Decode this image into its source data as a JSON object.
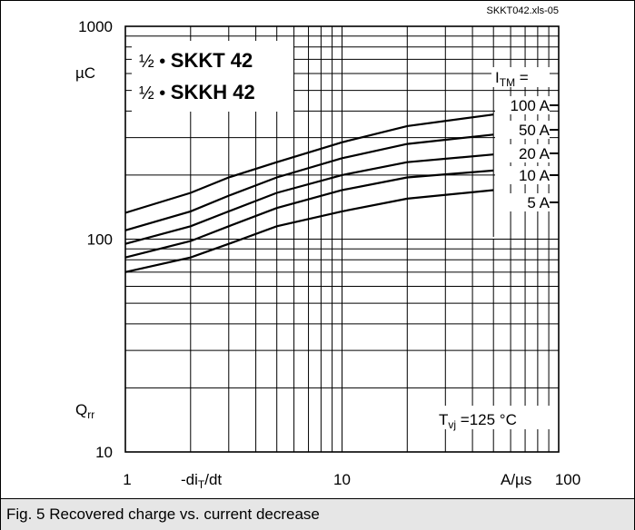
{
  "source_tag": "SKKT042.xls-05",
  "caption": "Fig. 5 Recovered charge vs. current decrease",
  "chart_data": {
    "type": "line",
    "title_lines": [
      "½ • SKKT 42",
      "½ • SKKH 42"
    ],
    "xlabel": "-diT/dt",
    "xlabel_parts": {
      "main": "-di",
      "sub": "T",
      "tail": "/dt"
    },
    "xunit": "A/µs",
    "ylabel": "Qrr",
    "ylabel_parts": {
      "main": "Q",
      "sub": "rr"
    },
    "yunit": "µC",
    "xscale": "log",
    "yscale": "log",
    "xlim": [
      1,
      100
    ],
    "ylim": [
      10,
      1000
    ],
    "x_ticks": [
      "1",
      "10",
      "100"
    ],
    "y_ticks": [
      "10",
      "100",
      "1000"
    ],
    "grid": true,
    "legend_title": {
      "main": "I",
      "sub": "TM",
      "tail": " ="
    },
    "condition": {
      "main": "T",
      "sub": "vj",
      "tail": " =125 °C"
    },
    "series": [
      {
        "name": "100 A",
        "x": [
          1,
          2,
          3,
          5,
          10,
          20,
          50
        ],
        "y": [
          133,
          165,
          195,
          230,
          285,
          340,
          385
        ]
      },
      {
        "name": "50 A",
        "x": [
          1,
          2,
          3,
          5,
          10,
          20,
          50
        ],
        "y": [
          110,
          135,
          160,
          195,
          240,
          280,
          310
        ]
      },
      {
        "name": "20 A",
        "x": [
          1,
          2,
          3,
          5,
          10,
          20,
          50
        ],
        "y": [
          95,
          115,
          135,
          165,
          200,
          230,
          250
        ]
      },
      {
        "name": "10 A",
        "x": [
          1,
          2,
          3,
          5,
          10,
          20,
          50
        ],
        "y": [
          82,
          98,
          115,
          140,
          170,
          195,
          210
        ]
      },
      {
        "name": "5 A",
        "x": [
          1,
          2,
          3,
          5,
          10,
          20,
          50
        ],
        "y": [
          70,
          82,
          95,
          115,
          135,
          155,
          170
        ]
      }
    ]
  }
}
